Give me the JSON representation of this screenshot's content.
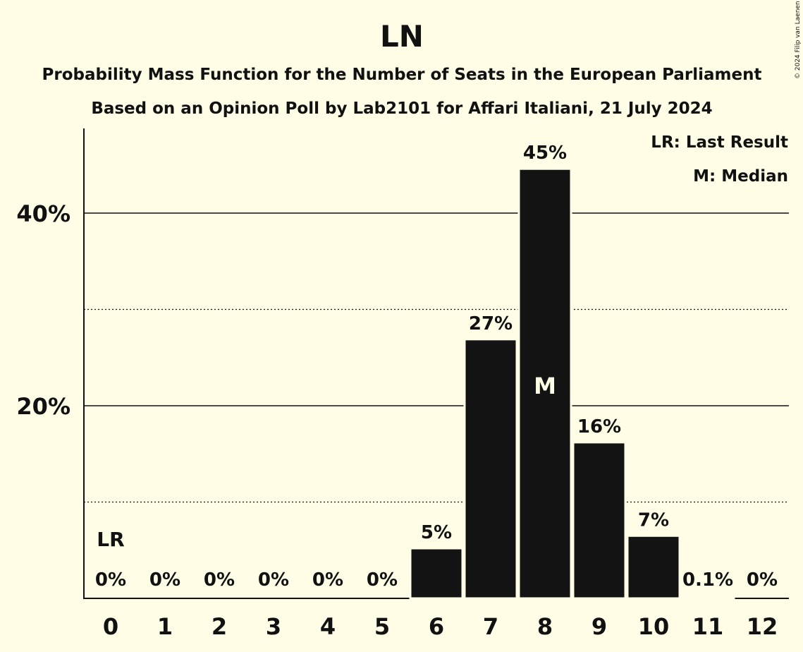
{
  "chart_data": {
    "type": "bar",
    "title": "LN",
    "subtitle": "Probability Mass Function for the Number of Seats in the European Parliament",
    "subtitle2": "Based on an Opinion Poll by Lab2101 for Affari Italiani, 21 July 2024",
    "copyright": "© 2024 Filip van Laenen",
    "categories": [
      "0",
      "1",
      "2",
      "3",
      "4",
      "5",
      "6",
      "7",
      "8",
      "9",
      "10",
      "11",
      "12"
    ],
    "values": [
      0,
      0,
      0,
      0,
      0,
      0,
      5.2,
      26.9,
      44.6,
      16.2,
      6.5,
      0.1,
      0
    ],
    "value_labels": [
      "0%",
      "0%",
      "0%",
      "0%",
      "0%",
      "0%",
      "5%",
      "27%",
      "45%",
      "16%",
      "7%",
      "0.1%",
      "0%"
    ],
    "ylim": [
      0,
      48
    ],
    "yticks": [
      {
        "value": 20,
        "label": "20%"
      },
      {
        "value": 40,
        "label": "40%"
      }
    ],
    "minor_gridlines": [
      10,
      30
    ],
    "last_result_index": 0,
    "last_result_label": "LR",
    "median_index": 8,
    "median_label": "M",
    "legend": [
      "LR: Last Result",
      "M: Median"
    ],
    "legend_position": "top-right",
    "colors": {
      "bar": "#131313",
      "background": "#fffde6",
      "median_text": "#fffde6"
    }
  }
}
